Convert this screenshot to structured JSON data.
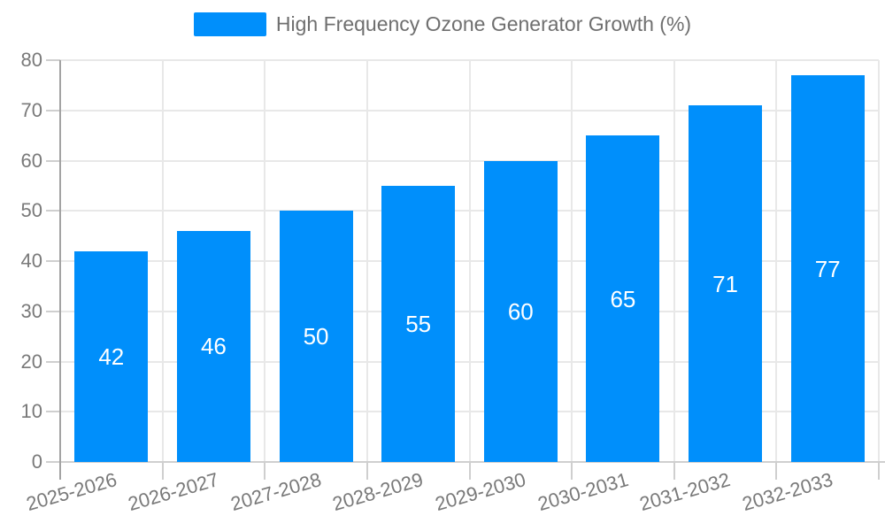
{
  "chart_data": {
    "type": "bar",
    "title": "High Frequency Ozone Generator Growth (%)",
    "categories": [
      "2025-2026",
      "2026-2027",
      "2027-2028",
      "2028-2029",
      "2029-2030",
      "2030-2031",
      "2031-2032",
      "2032-2033"
    ],
    "series": [
      {
        "name": "High Frequency Ozone Generator Growth (%)",
        "values": [
          42,
          46,
          50,
          55,
          60,
          65,
          71,
          77
        ]
      }
    ],
    "value_labels": [
      "42",
      "46",
      "50",
      "55",
      "60",
      "65",
      "71",
      "77"
    ],
    "xlabel": "",
    "ylabel": "",
    "ylim": [
      0,
      80
    ],
    "yticks": [
      0,
      10,
      20,
      30,
      40,
      50,
      60,
      70,
      80
    ],
    "grid": true,
    "legend_position": "top",
    "colors": {
      "bar": "#008FFB",
      "value_label": "#ffffff",
      "axis_text": "#797979",
      "legend_text": "#6f6f6f",
      "grid": "#e8e8e8",
      "axis_line": "#a3a3a3",
      "tick": "#cfcfcf",
      "background": "#ffffff"
    }
  }
}
